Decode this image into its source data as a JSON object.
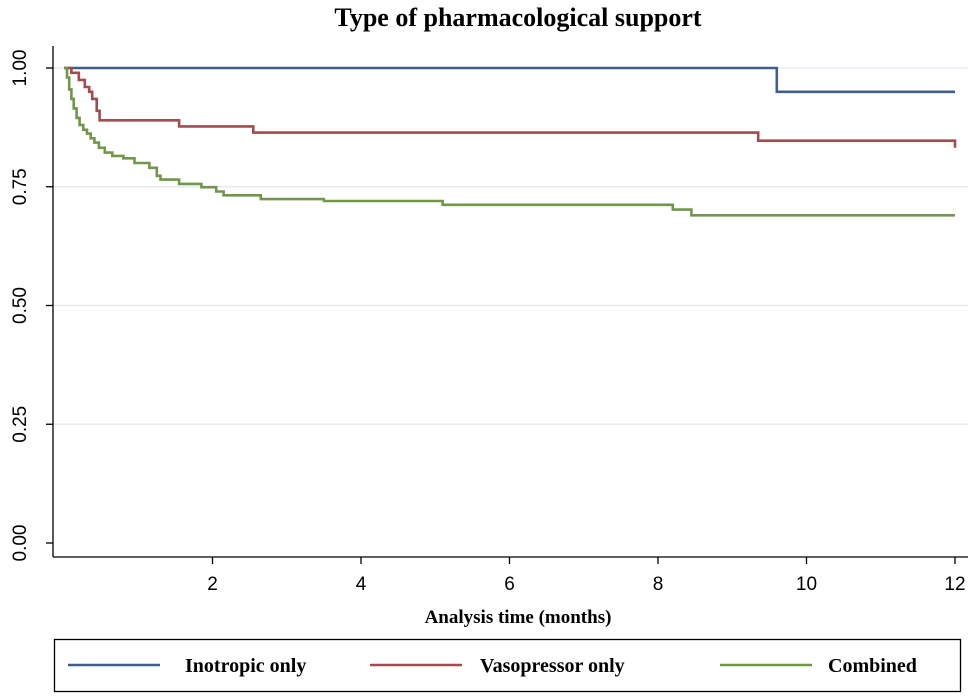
{
  "chart_data": {
    "type": "line",
    "title": "Type of pharmacological support",
    "xlabel": "Analysis time (months)",
    "ylabel": "",
    "xlim": [
      0,
      12
    ],
    "ylim": [
      0,
      1
    ],
    "x_ticks": [
      2,
      4,
      6,
      8,
      10,
      12
    ],
    "x_tick_labels": [
      "2",
      "4",
      "6",
      "8",
      "10",
      "12"
    ],
    "y_ticks": [
      0,
      0.25,
      0.5,
      0.75,
      1
    ],
    "y_tick_labels": [
      "0.00",
      "0.25",
      "0.50",
      "0.75",
      "1.00"
    ],
    "grid": "horizontal",
    "legend_position": "bottom",
    "step": true,
    "series": [
      {
        "name": "Inotropic only",
        "color": "#3f5f8a",
        "points": [
          [
            0,
            1.0
          ],
          [
            9.6,
            1.0
          ],
          [
            9.6,
            0.95
          ],
          [
            12,
            0.95
          ]
        ]
      },
      {
        "name": "Vasopressor only",
        "color": "#a14d4f",
        "points": [
          [
            0,
            1.0
          ],
          [
            0.1,
            0.99
          ],
          [
            0.2,
            0.975
          ],
          [
            0.28,
            0.96
          ],
          [
            0.34,
            0.95
          ],
          [
            0.38,
            0.935
          ],
          [
            0.44,
            0.91
          ],
          [
            0.48,
            0.89
          ],
          [
            1.55,
            0.89
          ],
          [
            1.55,
            0.877
          ],
          [
            2.55,
            0.877
          ],
          [
            2.55,
            0.864
          ],
          [
            9.35,
            0.864
          ],
          [
            9.35,
            0.847
          ],
          [
            12,
            0.847
          ],
          [
            12,
            0.832
          ]
        ]
      },
      {
        "name": "Combined",
        "color": "#72964a",
        "points": [
          [
            0,
            1.0
          ],
          [
            0.04,
            0.98
          ],
          [
            0.07,
            0.955
          ],
          [
            0.1,
            0.935
          ],
          [
            0.13,
            0.915
          ],
          [
            0.17,
            0.895
          ],
          [
            0.21,
            0.88
          ],
          [
            0.26,
            0.87
          ],
          [
            0.31,
            0.862
          ],
          [
            0.36,
            0.852
          ],
          [
            0.41,
            0.843
          ],
          [
            0.47,
            0.832
          ],
          [
            0.55,
            0.822
          ],
          [
            0.65,
            0.815
          ],
          [
            0.8,
            0.81
          ],
          [
            0.95,
            0.8
          ],
          [
            1.15,
            0.79
          ],
          [
            1.25,
            0.773
          ],
          [
            1.3,
            0.765
          ],
          [
            1.55,
            0.756
          ],
          [
            1.85,
            0.749
          ],
          [
            2.05,
            0.74
          ],
          [
            2.15,
            0.732
          ],
          [
            2.65,
            0.724
          ],
          [
            3.5,
            0.72
          ],
          [
            5.1,
            0.72
          ],
          [
            5.1,
            0.712
          ],
          [
            8.2,
            0.712
          ],
          [
            8.2,
            0.702
          ],
          [
            8.45,
            0.702
          ],
          [
            8.45,
            0.69
          ],
          [
            12,
            0.69
          ]
        ]
      }
    ]
  }
}
